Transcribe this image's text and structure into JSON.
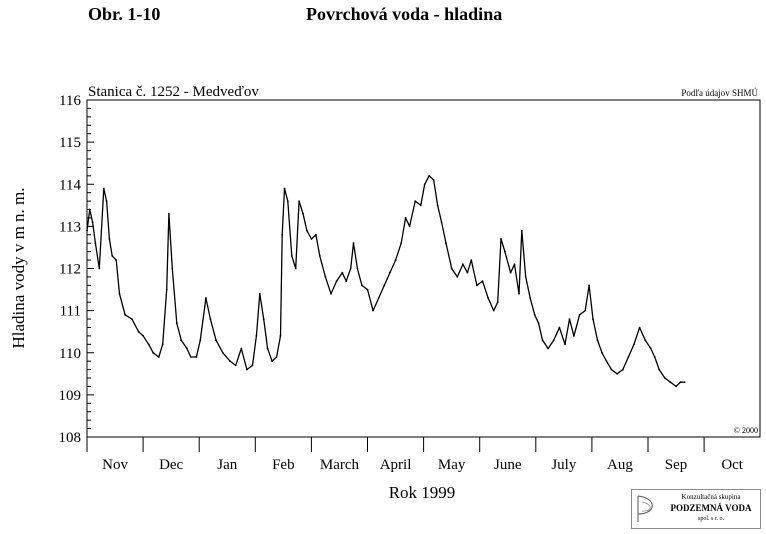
{
  "header": {
    "figure_label": "Obr. 1-10",
    "figure_title": "Povrchová voda - hladina"
  },
  "chart_data": {
    "type": "line",
    "title": "Stanica č. 1252 - Medveďov",
    "source_note": "Podľa údajov SHMÚ",
    "copyright": "© 2000",
    "xlabel": "Rok 1999",
    "ylabel": "Hladina vody v m n. m.",
    "ylim": [
      108,
      116
    ],
    "yticks": [
      108,
      109,
      110,
      111,
      112,
      113,
      114,
      115,
      116
    ],
    "months": [
      "Nov",
      "Dec",
      "Jan",
      "Feb",
      "March",
      "April",
      "May",
      "June",
      "July",
      "Aug",
      "Sep",
      "Oct"
    ],
    "grid": false,
    "series": [
      {
        "color": "#000000",
        "x_unit": "month",
        "points": [
          [
            0.0,
            112.9
          ],
          [
            0.05,
            113.4
          ],
          [
            0.1,
            113.1
          ],
          [
            0.15,
            112.6
          ],
          [
            0.22,
            112.0
          ],
          [
            0.3,
            113.9
          ],
          [
            0.35,
            113.6
          ],
          [
            0.4,
            112.7
          ],
          [
            0.45,
            112.3
          ],
          [
            0.52,
            112.2
          ],
          [
            0.58,
            111.4
          ],
          [
            0.68,
            110.9
          ],
          [
            0.8,
            110.8
          ],
          [
            0.92,
            110.5
          ],
          [
            1.0,
            110.4
          ],
          [
            1.1,
            110.2
          ],
          [
            1.18,
            110.0
          ],
          [
            1.28,
            109.9
          ],
          [
            1.35,
            110.2
          ],
          [
            1.42,
            111.5
          ],
          [
            1.46,
            113.3
          ],
          [
            1.52,
            112.0
          ],
          [
            1.6,
            110.7
          ],
          [
            1.68,
            110.3
          ],
          [
            1.78,
            110.1
          ],
          [
            1.85,
            109.9
          ],
          [
            1.95,
            109.9
          ],
          [
            2.02,
            110.3
          ],
          [
            2.12,
            111.3
          ],
          [
            2.2,
            110.8
          ],
          [
            2.3,
            110.3
          ],
          [
            2.42,
            110.0
          ],
          [
            2.55,
            109.8
          ],
          [
            2.65,
            109.7
          ],
          [
            2.75,
            110.1
          ],
          [
            2.85,
            109.6
          ],
          [
            2.95,
            109.7
          ],
          [
            3.02,
            110.4
          ],
          [
            3.08,
            111.4
          ],
          [
            3.15,
            110.8
          ],
          [
            3.22,
            110.1
          ],
          [
            3.3,
            109.8
          ],
          [
            3.38,
            109.9
          ],
          [
            3.45,
            110.4
          ],
          [
            3.48,
            112.8
          ],
          [
            3.52,
            113.9
          ],
          [
            3.58,
            113.6
          ],
          [
            3.65,
            112.3
          ],
          [
            3.72,
            112.0
          ],
          [
            3.78,
            113.6
          ],
          [
            3.85,
            113.3
          ],
          [
            3.92,
            112.9
          ],
          [
            4.0,
            112.7
          ],
          [
            4.08,
            112.8
          ],
          [
            4.15,
            112.3
          ],
          [
            4.25,
            111.8
          ],
          [
            4.35,
            111.4
          ],
          [
            4.45,
            111.7
          ],
          [
            4.55,
            111.9
          ],
          [
            4.62,
            111.7
          ],
          [
            4.7,
            112.0
          ],
          [
            4.75,
            112.6
          ],
          [
            4.82,
            112.0
          ],
          [
            4.9,
            111.6
          ],
          [
            5.0,
            111.5
          ],
          [
            5.1,
            111.0
          ],
          [
            5.2,
            111.3
          ],
          [
            5.3,
            111.6
          ],
          [
            5.4,
            111.9
          ],
          [
            5.5,
            112.2
          ],
          [
            5.6,
            112.6
          ],
          [
            5.68,
            113.2
          ],
          [
            5.75,
            113.0
          ],
          [
            5.85,
            113.6
          ],
          [
            5.95,
            113.5
          ],
          [
            6.02,
            114.0
          ],
          [
            6.1,
            114.2
          ],
          [
            6.18,
            114.1
          ],
          [
            6.25,
            113.5
          ],
          [
            6.32,
            113.1
          ],
          [
            6.4,
            112.6
          ],
          [
            6.5,
            112.0
          ],
          [
            6.6,
            111.8
          ],
          [
            6.7,
            112.1
          ],
          [
            6.78,
            111.9
          ],
          [
            6.85,
            112.2
          ],
          [
            6.95,
            111.6
          ],
          [
            7.05,
            111.7
          ],
          [
            7.15,
            111.3
          ],
          [
            7.25,
            111.0
          ],
          [
            7.32,
            111.2
          ],
          [
            7.38,
            112.7
          ],
          [
            7.45,
            112.4
          ],
          [
            7.55,
            111.9
          ],
          [
            7.62,
            112.1
          ],
          [
            7.7,
            111.4
          ],
          [
            7.75,
            112.9
          ],
          [
            7.82,
            111.8
          ],
          [
            7.9,
            111.3
          ],
          [
            7.98,
            110.9
          ],
          [
            8.05,
            110.7
          ],
          [
            8.12,
            110.3
          ],
          [
            8.22,
            110.1
          ],
          [
            8.32,
            110.3
          ],
          [
            8.42,
            110.6
          ],
          [
            8.52,
            110.2
          ],
          [
            8.6,
            110.8
          ],
          [
            8.68,
            110.4
          ],
          [
            8.78,
            110.9
          ],
          [
            8.88,
            111.0
          ],
          [
            8.95,
            111.6
          ],
          [
            9.02,
            110.8
          ],
          [
            9.1,
            110.3
          ],
          [
            9.18,
            110.0
          ],
          [
            9.26,
            109.8
          ],
          [
            9.35,
            109.6
          ],
          [
            9.45,
            109.5
          ],
          [
            9.55,
            109.6
          ],
          [
            9.65,
            109.9
          ],
          [
            9.75,
            110.2
          ],
          [
            9.85,
            110.6
          ],
          [
            9.95,
            110.3
          ],
          [
            10.05,
            110.1
          ],
          [
            10.12,
            109.9
          ],
          [
            10.2,
            109.6
          ],
          [
            10.3,
            109.4
          ],
          [
            10.4,
            109.3
          ],
          [
            10.5,
            109.2
          ],
          [
            10.58,
            109.3
          ],
          [
            10.65,
            109.3
          ]
        ]
      }
    ]
  },
  "logo": {
    "line1": "Konzultačná skupina",
    "line2": "PODZEMNÁ VODA",
    "line3": "spol. s r. o."
  }
}
